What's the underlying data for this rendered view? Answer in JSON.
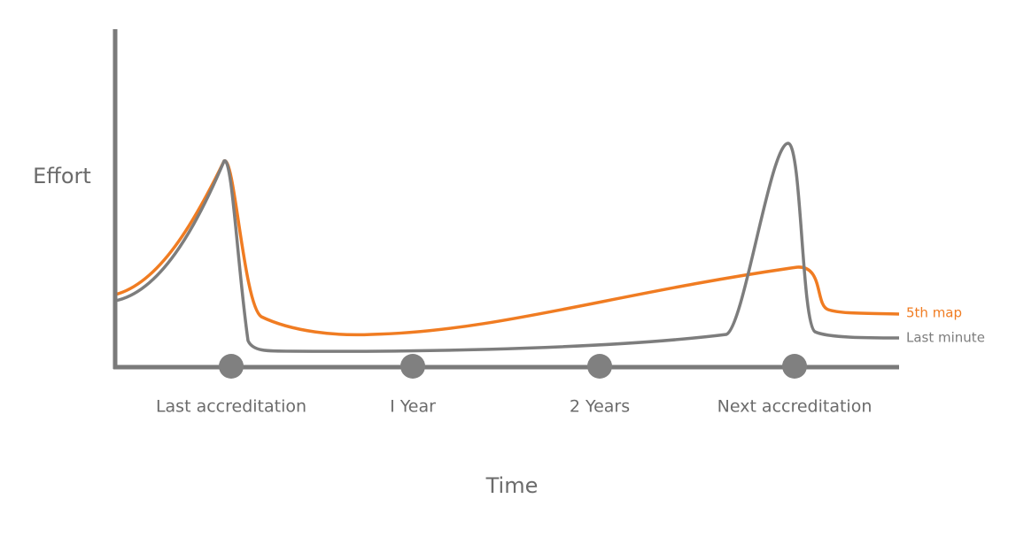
{
  "axes": {
    "y_label": "Effort",
    "x_label": "Time"
  },
  "milestones": [
    "Last accreditation",
    "I Year",
    "2 Years",
    "Next accreditation"
  ],
  "curves": [
    {
      "label": "5th map",
      "color": "#f07c22"
    },
    {
      "label": "Last minute",
      "color": "#7d7d7d"
    }
  ]
}
